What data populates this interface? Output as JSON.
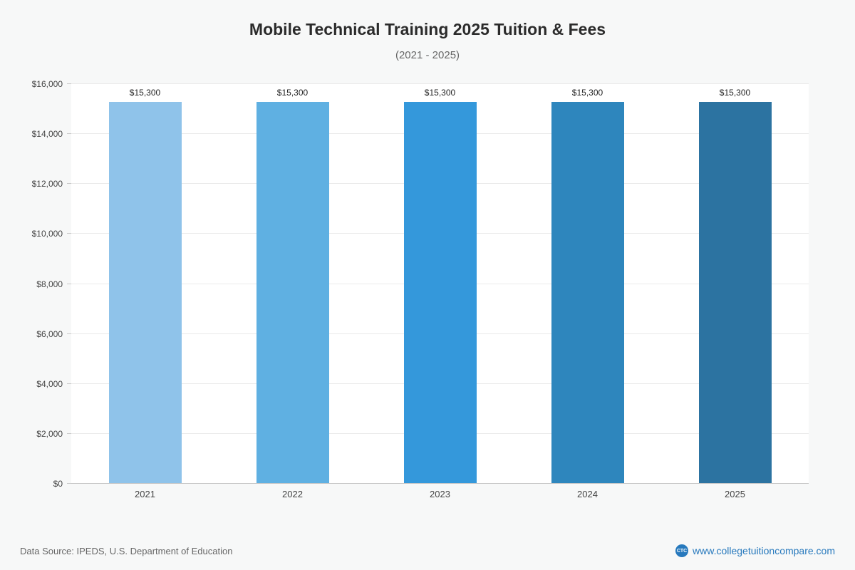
{
  "header": {
    "title": "Mobile Technical Training 2025 Tuition & Fees",
    "subtitle": "(2021 - 2025)"
  },
  "chart_data": {
    "type": "bar",
    "title": "Mobile Technical Training 2025 Tuition & Fees",
    "subtitle": "(2021 - 2025)",
    "categories": [
      "2021",
      "2022",
      "2023",
      "2024",
      "2025"
    ],
    "values": [
      15300,
      15300,
      15300,
      15300,
      15300
    ],
    "value_labels": [
      "$15,300",
      "$15,300",
      "$15,300",
      "$15,300",
      "$15,300"
    ],
    "bar_colors": [
      "#8fc3ea",
      "#5fb0e2",
      "#3498db",
      "#2e86bd",
      "#2c73a1"
    ],
    "xlabel": "",
    "ylabel": "",
    "ylim": [
      0,
      16000
    ],
    "ytick_step": 2000,
    "ytick_labels": [
      "$0",
      "$2,000",
      "$4,000",
      "$6,000",
      "$8,000",
      "$10,000",
      "$12,000",
      "$14,000",
      "$16,000"
    ],
    "grid": true,
    "legend": false
  },
  "footer": {
    "source": "Data Source: IPEDS, U.S. Department of Education",
    "logo_text": "CTC",
    "site": "www.collegetuitioncompare.com"
  }
}
